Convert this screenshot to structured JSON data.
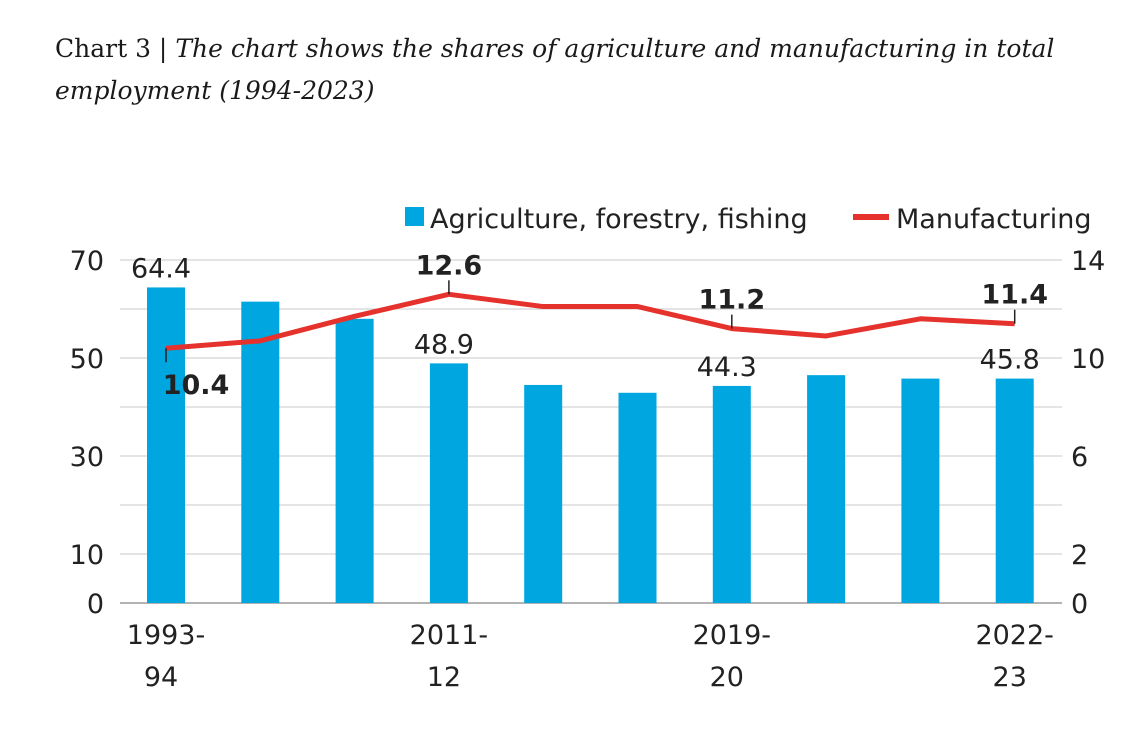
{
  "caption": {
    "prefix": "Chart 3 | ",
    "title": "The chart shows the shares of agriculture and manufacturing in total employment (1994-2023)"
  },
  "colors": {
    "bar": "#00a6e0",
    "line": "#e5322d",
    "grid": "#c8c8c8"
  },
  "chart_data": {
    "type": "bar",
    "categories": [
      "1993-94",
      "",
      "",
      "2011-12",
      "",
      "",
      "2019-20",
      "",
      "",
      "2022-23"
    ],
    "x_tick_labels": [
      {
        "index": 0,
        "lines": [
          "1993-",
          "94"
        ]
      },
      {
        "index": 3,
        "lines": [
          "2011-",
          "12"
        ]
      },
      {
        "index": 6,
        "lines": [
          "2019-",
          "20"
        ]
      },
      {
        "index": 9,
        "lines": [
          "2022-",
          "23"
        ]
      }
    ],
    "series": [
      {
        "name": "Agriculture, forestry, fishing",
        "type": "bar",
        "axis": "left",
        "values": [
          64.4,
          61.5,
          58.0,
          48.9,
          44.5,
          42.9,
          44.3,
          46.5,
          45.8,
          45.8
        ]
      },
      {
        "name": "Manufacturing",
        "type": "line",
        "axis": "right",
        "values": [
          10.4,
          10.7,
          11.7,
          12.6,
          12.1,
          12.1,
          11.2,
          10.9,
          11.6,
          11.4
        ]
      }
    ],
    "bar_labels": [
      {
        "index": 0,
        "text": "64.4"
      },
      {
        "index": 3,
        "text": "48.9"
      },
      {
        "index": 6,
        "text": "44.3"
      },
      {
        "index": 9,
        "text": "45.8"
      }
    ],
    "line_labels": [
      {
        "index": 0,
        "text": "10.4",
        "pos": "below"
      },
      {
        "index": 3,
        "text": "12.6",
        "pos": "above"
      },
      {
        "index": 6,
        "text": "11.2",
        "pos": "above"
      },
      {
        "index": 9,
        "text": "11.4",
        "pos": "above"
      }
    ],
    "left_axis": {
      "ylim": [
        0,
        70
      ],
      "ticks": [
        0,
        10,
        30,
        50,
        70
      ]
    },
    "right_axis": {
      "ylim": [
        0,
        14
      ],
      "ticks": [
        0,
        2,
        6,
        10,
        14
      ]
    },
    "gridlines": [
      0,
      10,
      20,
      30,
      40,
      50,
      60,
      70
    ],
    "grid": true,
    "legend_position": "top-right"
  }
}
